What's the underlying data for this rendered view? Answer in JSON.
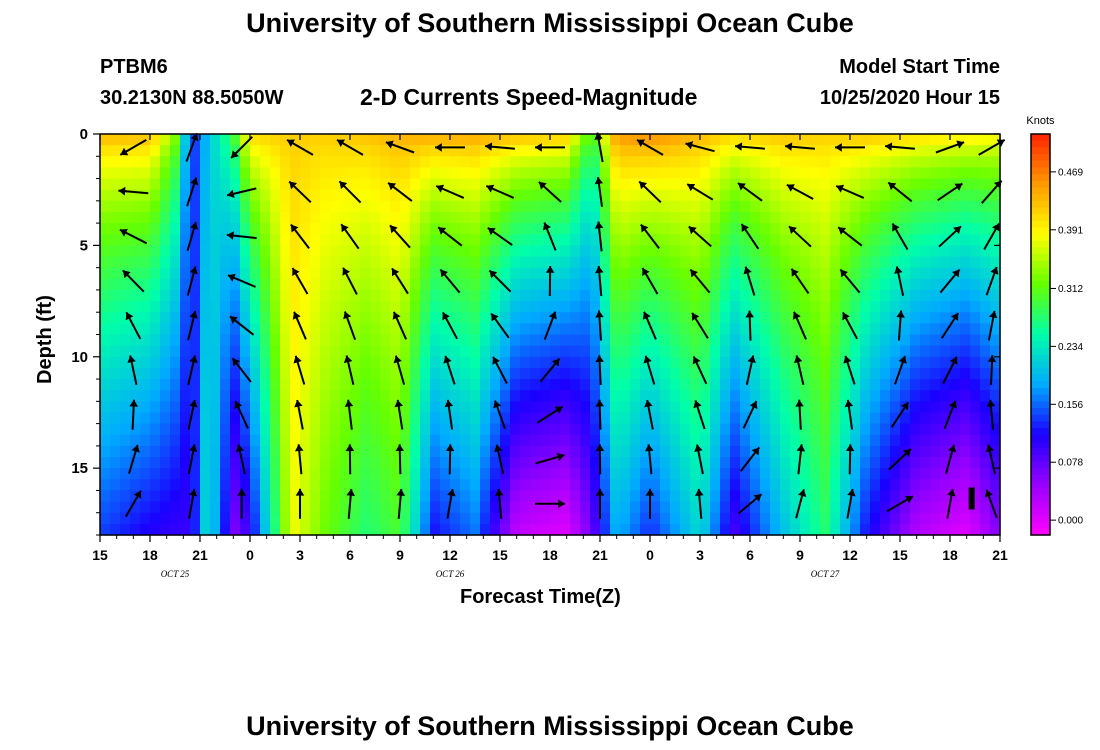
{
  "header": {
    "title_top": "University of Southern Mississippi Ocean Cube",
    "station_id": "PTBM6",
    "station_coords": "30.2130N 88.5050W",
    "plot_title": "2-D Currents Speed-Magnitude",
    "model_label": "Model Start Time",
    "model_time": "10/25/2020 Hour 15"
  },
  "footer": {
    "title_bottom": "University of Southern Mississippi Ocean Cube"
  },
  "chart_data": {
    "type": "heatmap",
    "title": "2-D Currents Speed-Magnitude",
    "xlabel": "Forecast Time(Z)",
    "ylabel": "Depth (ft)",
    "x_range_hours": [
      0,
      54
    ],
    "y_range_ft": [
      0,
      18
    ],
    "x_ticks": [
      {
        "h": 0,
        "label": "15"
      },
      {
        "h": 3,
        "label": "18"
      },
      {
        "h": 6,
        "label": "21"
      },
      {
        "h": 9,
        "label": "0"
      },
      {
        "h": 12,
        "label": "3"
      },
      {
        "h": 15,
        "label": "6"
      },
      {
        "h": 18,
        "label": "9"
      },
      {
        "h": 21,
        "label": "12"
      },
      {
        "h": 24,
        "label": "15"
      },
      {
        "h": 27,
        "label": "18"
      },
      {
        "h": 30,
        "label": "21"
      },
      {
        "h": 33,
        "label": "0"
      },
      {
        "h": 36,
        "label": "3"
      },
      {
        "h": 39,
        "label": "6"
      },
      {
        "h": 42,
        "label": "9"
      },
      {
        "h": 45,
        "label": "12"
      },
      {
        "h": 48,
        "label": "15"
      },
      {
        "h": 51,
        "label": "18"
      },
      {
        "h": 54,
        "label": "21"
      }
    ],
    "date_labels": [
      {
        "h": 4.5,
        "label": "OCT 25"
      },
      {
        "h": 21,
        "label": "OCT 26"
      },
      {
        "h": 43.5,
        "label": "OCT 27"
      }
    ],
    "y_ticks": [
      {
        "depth": 0,
        "label": "0"
      },
      {
        "depth": 5,
        "label": "5"
      },
      {
        "depth": 10,
        "label": "10"
      },
      {
        "depth": 15,
        "label": "15"
      }
    ],
    "colorbar": {
      "unit": "Knots",
      "min": -0.02,
      "max": 0.52,
      "ticks": [
        "0.000",
        "0.078",
        "0.156",
        "0.234",
        "0.312",
        "0.391",
        "0.469"
      ],
      "colors": [
        "#ff00ff",
        "#9900ff",
        "#1a00ff",
        "#00aaff",
        "#00ffaa",
        "#66ff00",
        "#ffff00",
        "#ff9900",
        "#ff2200"
      ]
    },
    "column_profiles_knots": [
      {
        "h": 0,
        "surface": 0.44,
        "bottom": 0.14
      },
      {
        "h": 3,
        "surface": 0.44,
        "bottom": 0.11
      },
      {
        "h": 4.5,
        "surface": 0.34,
        "bottom": 0.1
      },
      {
        "h": 5.5,
        "surface": 0.13,
        "bottom": 0.1
      },
      {
        "h": 6.5,
        "surface": 0.2,
        "bottom": 0.24
      },
      {
        "h": 8,
        "surface": 0.3,
        "bottom": 0.06
      },
      {
        "h": 9,
        "surface": 0.42,
        "bottom": 0.1
      },
      {
        "h": 11.5,
        "surface": 0.42,
        "bottom": 0.38
      },
      {
        "h": 13.5,
        "surface": 0.42,
        "bottom": 0.32
      },
      {
        "h": 16,
        "surface": 0.43,
        "bottom": 0.27
      },
      {
        "h": 18,
        "surface": 0.44,
        "bottom": 0.3
      },
      {
        "h": 20,
        "surface": 0.45,
        "bottom": 0.12
      },
      {
        "h": 22.5,
        "surface": 0.45,
        "bottom": 0.16
      },
      {
        "h": 25,
        "surface": 0.44,
        "bottom": 0.02
      },
      {
        "h": 28,
        "surface": 0.43,
        "bottom": 0.0
      },
      {
        "h": 29.5,
        "surface": 0.3,
        "bottom": 0.07
      },
      {
        "h": 31,
        "surface": 0.46,
        "bottom": 0.19
      },
      {
        "h": 33,
        "surface": 0.47,
        "bottom": 0.13
      },
      {
        "h": 36,
        "surface": 0.44,
        "bottom": 0.22
      },
      {
        "h": 38,
        "surface": 0.42,
        "bottom": 0.09
      },
      {
        "h": 41,
        "surface": 0.43,
        "bottom": 0.2
      },
      {
        "h": 43.5,
        "surface": 0.42,
        "bottom": 0.27
      },
      {
        "h": 46,
        "surface": 0.43,
        "bottom": 0.12
      },
      {
        "h": 49,
        "surface": 0.42,
        "bottom": 0.03
      },
      {
        "h": 52,
        "surface": 0.41,
        "bottom": 0.0
      },
      {
        "h": 54,
        "surface": 0.4,
        "bottom": 0.06
      }
    ],
    "vector_columns_deg": [
      {
        "h": 2,
        "surface": 210,
        "bottom": 60
      },
      {
        "h": 5.5,
        "surface": 70,
        "bottom": 80
      },
      {
        "h": 8.5,
        "surface": 225,
        "bottom": 90
      },
      {
        "h": 12,
        "surface": 150,
        "bottom": 90
      },
      {
        "h": 15,
        "surface": 150,
        "bottom": 85
      },
      {
        "h": 18,
        "surface": 160,
        "bottom": 85
      },
      {
        "h": 21,
        "surface": 180,
        "bottom": 80
      },
      {
        "h": 24,
        "surface": 175,
        "bottom": 95
      },
      {
        "h": 27,
        "surface": 180,
        "bottom": 0
      },
      {
        "h": 30,
        "surface": 100,
        "bottom": 90
      },
      {
        "h": 33,
        "surface": 150,
        "bottom": 90
      },
      {
        "h": 36,
        "surface": 165,
        "bottom": 95
      },
      {
        "h": 39,
        "surface": 175,
        "bottom": 40
      },
      {
        "h": 42,
        "surface": 175,
        "bottom": 75
      },
      {
        "h": 45,
        "surface": 180,
        "bottom": 80
      },
      {
        "h": 48,
        "surface": 175,
        "bottom": 30
      },
      {
        "h": 51,
        "surface": 20,
        "bottom": 80
      },
      {
        "h": 53.5,
        "surface": 30,
        "bottom": 110
      }
    ],
    "vector_depths_ft": [
      0.6,
      2.6,
      4.6,
      6.6,
      8.6,
      10.6,
      12.6,
      14.6,
      16.6
    ],
    "scale_marker": {
      "h": 52.3,
      "depth": 16.0
    }
  }
}
